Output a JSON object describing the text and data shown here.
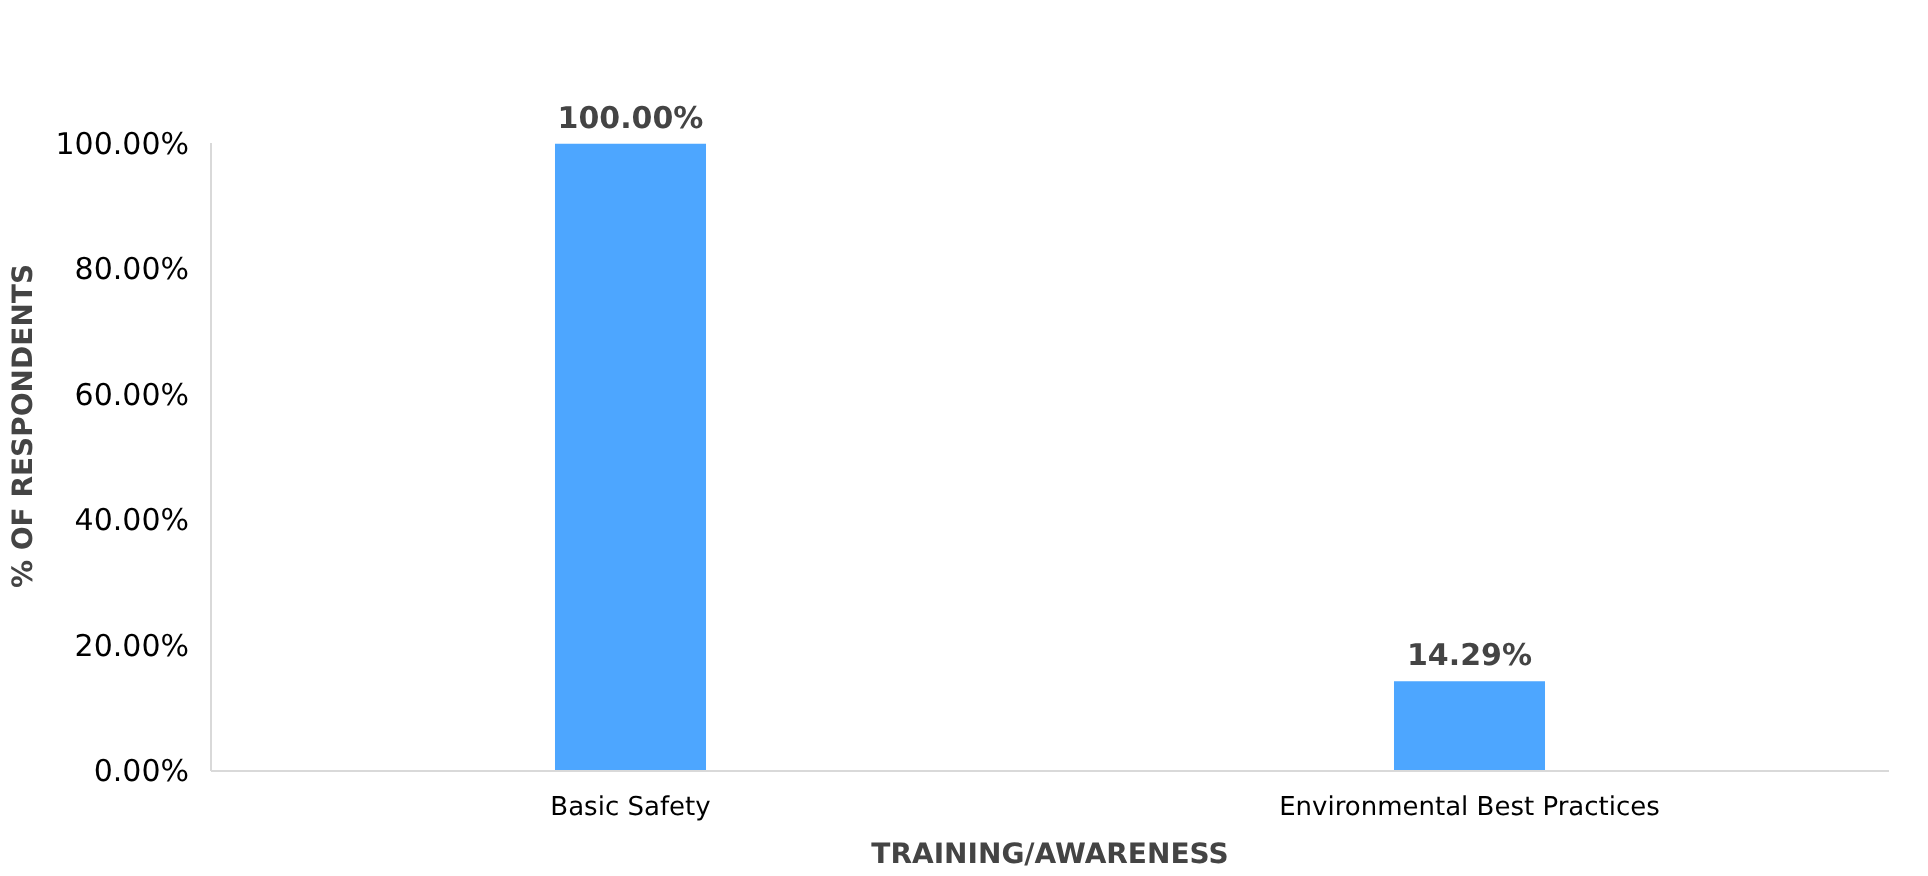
{
  "chart_data": {
    "type": "bar",
    "xlabel": "TRAINING/AWARENESS",
    "ylabel": "% OF RESPONDENTS",
    "categories": [
      "Basic Safety",
      "Environmental Best Practices"
    ],
    "values": [
      100,
      14.29
    ],
    "color": "#4da6ff",
    "value_labels": [
      "100.00%",
      "14.29%"
    ],
    "ylim": [
      0,
      100
    ],
    "yticks": [
      {
        "value": 0,
        "label": "0.00%"
      },
      {
        "value": 20,
        "label": "20.00%"
      },
      {
        "value": 40,
        "label": "40.00%"
      },
      {
        "value": 60,
        "label": "60.00%"
      },
      {
        "value": 80,
        "label": "80.00%"
      },
      {
        "value": 100,
        "label": "100.00%"
      }
    ],
    "grid": false
  }
}
